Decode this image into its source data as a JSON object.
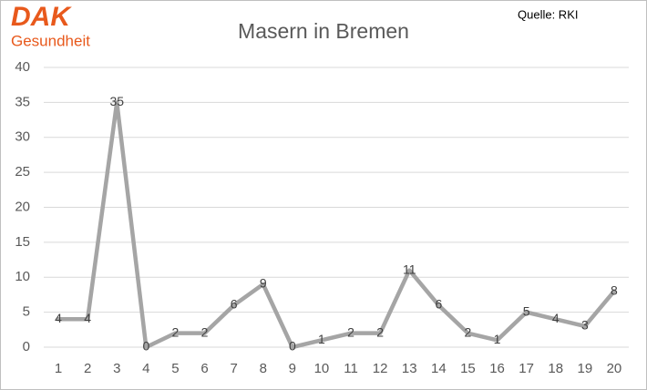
{
  "chart_data": {
    "type": "line",
    "title": "Masern in Bremen",
    "source": "Quelle: RKI",
    "logo": {
      "brand": "DAK",
      "tagline": "Gesundheit"
    },
    "categories": [
      "1",
      "2",
      "3",
      "4",
      "5",
      "6",
      "7",
      "8",
      "9",
      "10",
      "11",
      "12",
      "13",
      "14",
      "15",
      "16",
      "17",
      "18",
      "19",
      "20"
    ],
    "values": [
      4,
      4,
      35,
      0,
      2,
      2,
      6,
      9,
      0,
      1,
      2,
      2,
      11,
      6,
      2,
      1,
      5,
      4,
      3,
      8
    ],
    "color": "#a5a5a5",
    "ylim": [
      0,
      40
    ],
    "yticks": [
      0,
      5,
      10,
      15,
      20,
      25,
      30,
      35,
      40
    ],
    "grid": true
  }
}
